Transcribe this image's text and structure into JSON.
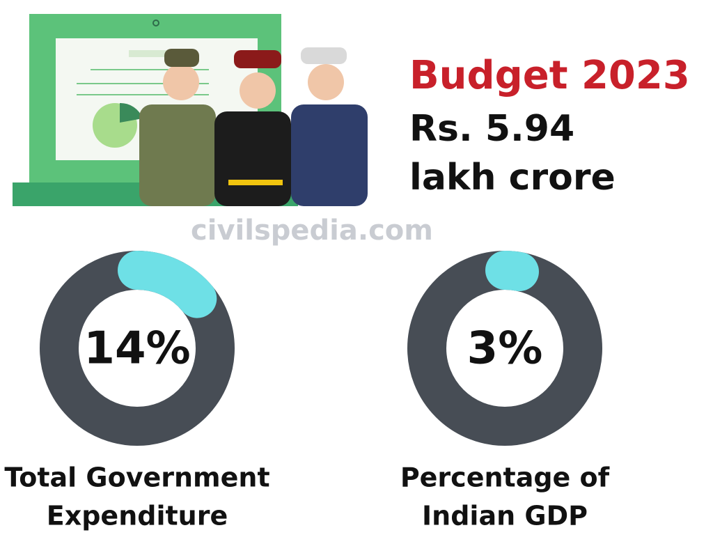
{
  "header": {
    "title": "Budget 2023",
    "amount_lines": [
      "Rs. 5.94",
      "lakh crore"
    ],
    "watermark": "civilspedia.com"
  },
  "chart_data": [
    {
      "type": "donut",
      "values": [
        14
      ],
      "value_labels": [
        "14%"
      ],
      "label_lines": [
        "Total Government",
        "Expenditure"
      ],
      "ring_color": "#474d55",
      "color": "#6ee0e6"
    },
    {
      "type": "donut",
      "values": [
        3
      ],
      "value_labels": [
        "3%"
      ],
      "label_lines": [
        "Percentage of",
        "Indian GDP"
      ],
      "ring_color": "#474d55",
      "color": "#6ee0e6"
    }
  ]
}
